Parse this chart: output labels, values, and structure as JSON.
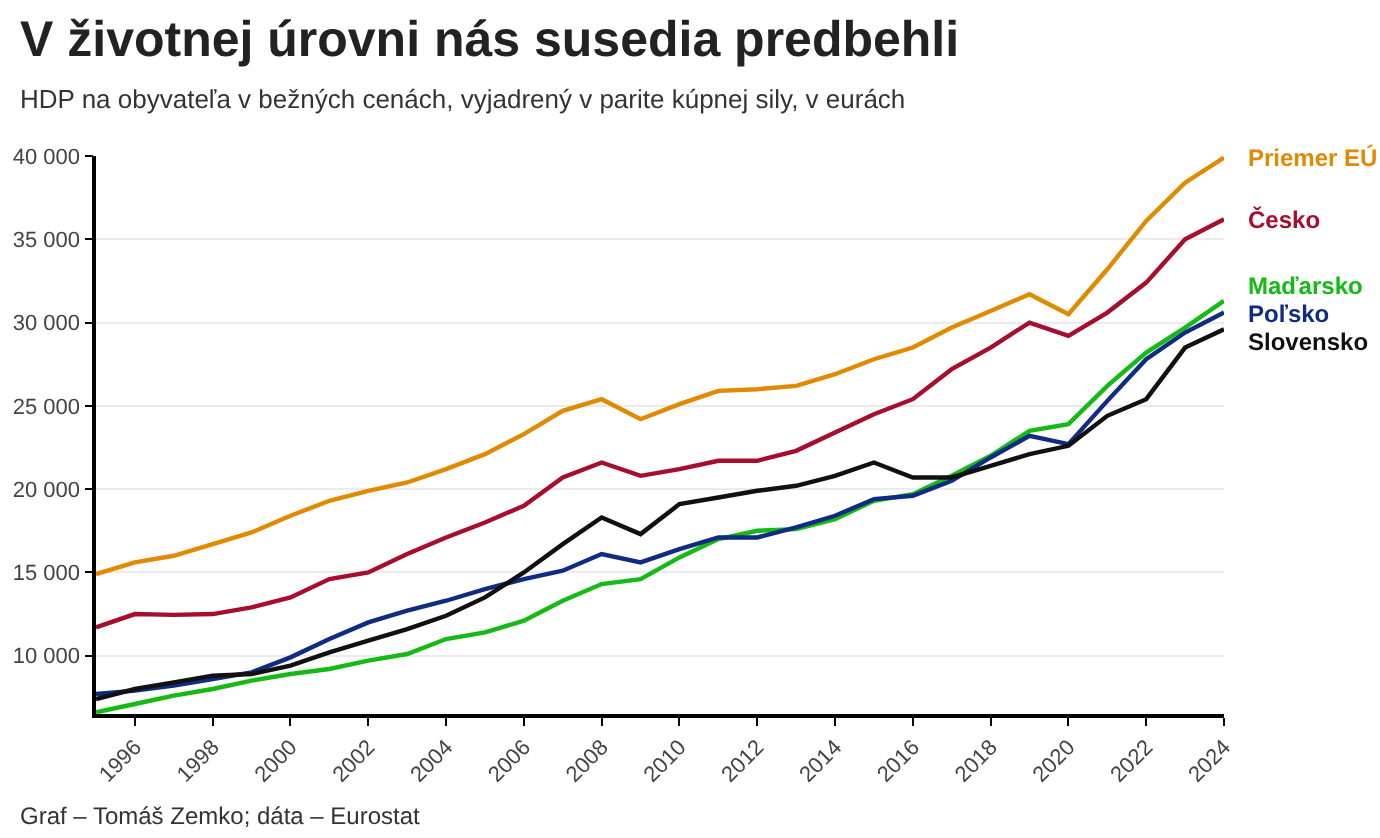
{
  "chart_data": {
    "type": "line",
    "title": "V životnej úrovni nás susedia predbehli",
    "subtitle": "HDP na obyvateľa v bežných cenách, vyjadrený v parite kúpnej sily, v eurách",
    "annotations": [
      "Graf – Tomáš Zemko; dáta – Eurostat"
    ],
    "x": [
      1995,
      1996,
      1997,
      1998,
      1999,
      2000,
      2001,
      2002,
      2003,
      2004,
      2005,
      2006,
      2007,
      2008,
      2009,
      2010,
      2011,
      2012,
      2013,
      2014,
      2015,
      2016,
      2017,
      2018,
      2019,
      2020,
      2021,
      2022,
      2023,
      2024
    ],
    "xlim": [
      1995,
      2024
    ],
    "xticks": [
      1996,
      1998,
      2000,
      2002,
      2004,
      2006,
      2008,
      2010,
      2012,
      2014,
      2016,
      2018,
      2020,
      2022,
      2024
    ],
    "ylim": [
      6500,
      40000
    ],
    "yticks": [
      {
        "value": 10000,
        "label": "10 000"
      },
      {
        "value": 15000,
        "label": "15 000"
      },
      {
        "value": 20000,
        "label": "20 000"
      },
      {
        "value": 25000,
        "label": "25 000"
      },
      {
        "value": 30000,
        "label": "30 000"
      },
      {
        "value": 35000,
        "label": "35 000"
      },
      {
        "value": 40000,
        "label": "40 000"
      }
    ],
    "grid": "y",
    "legend": false,
    "marker": "none",
    "line_style": "solid",
    "series": [
      {
        "name": "Priemer EÚ",
        "color": "#e08a00",
        "values": [
          14900,
          15600,
          16000,
          16700,
          17400,
          18400,
          19300,
          19900,
          20400,
          21200,
          22100,
          23300,
          24700,
          25400,
          24200,
          25100,
          25900,
          26000,
          26200,
          26900,
          27800,
          28500,
          29700,
          30700,
          31700,
          30500,
          33200,
          36100,
          38400,
          39900
        ]
      },
      {
        "name": "Česko",
        "color": "#a50f2d",
        "values": [
          11700,
          12500,
          12450,
          12500,
          12900,
          13500,
          14600,
          15000,
          16100,
          17100,
          18000,
          19000,
          20700,
          21600,
          20800,
          21200,
          21700,
          21700,
          22300,
          23400,
          24500,
          25400,
          27200,
          28500,
          30000,
          29200,
          30600,
          32400,
          35000,
          36200
        ]
      },
      {
        "name": "Maďarsko",
        "color": "#16b916",
        "values": [
          6600,
          7100,
          7600,
          8000,
          8500,
          8900,
          9200,
          9700,
          10100,
          11000,
          11400,
          12100,
          13300,
          14300,
          14600,
          15900,
          17000,
          17500,
          17600,
          18200,
          19300,
          19700,
          20800,
          22000,
          23500,
          23900,
          26200,
          28200,
          29700,
          31300
        ]
      },
      {
        "name": "Poľsko",
        "color": "#0f2b82",
        "values": [
          7700,
          7900,
          8200,
          8600,
          9000,
          9900,
          11000,
          12000,
          12700,
          13300,
          14000,
          14600,
          15100,
          16100,
          15600,
          16400,
          17100,
          17100,
          17700,
          18400,
          19400,
          19600,
          20500,
          21900,
          23200,
          22700,
          25300,
          27800,
          29400,
          30600
        ]
      },
      {
        "name": "Slovensko",
        "color": "#111111",
        "values": [
          7400,
          8000,
          8400,
          8800,
          8900,
          9400,
          10200,
          10900,
          11600,
          12400,
          13500,
          15000,
          16700,
          18300,
          17300,
          19100,
          19500,
          19900,
          20200,
          20800,
          21600,
          20700,
          20700,
          21400,
          22100,
          22600,
          24400,
          25400,
          28500,
          29600
        ]
      }
    ]
  }
}
